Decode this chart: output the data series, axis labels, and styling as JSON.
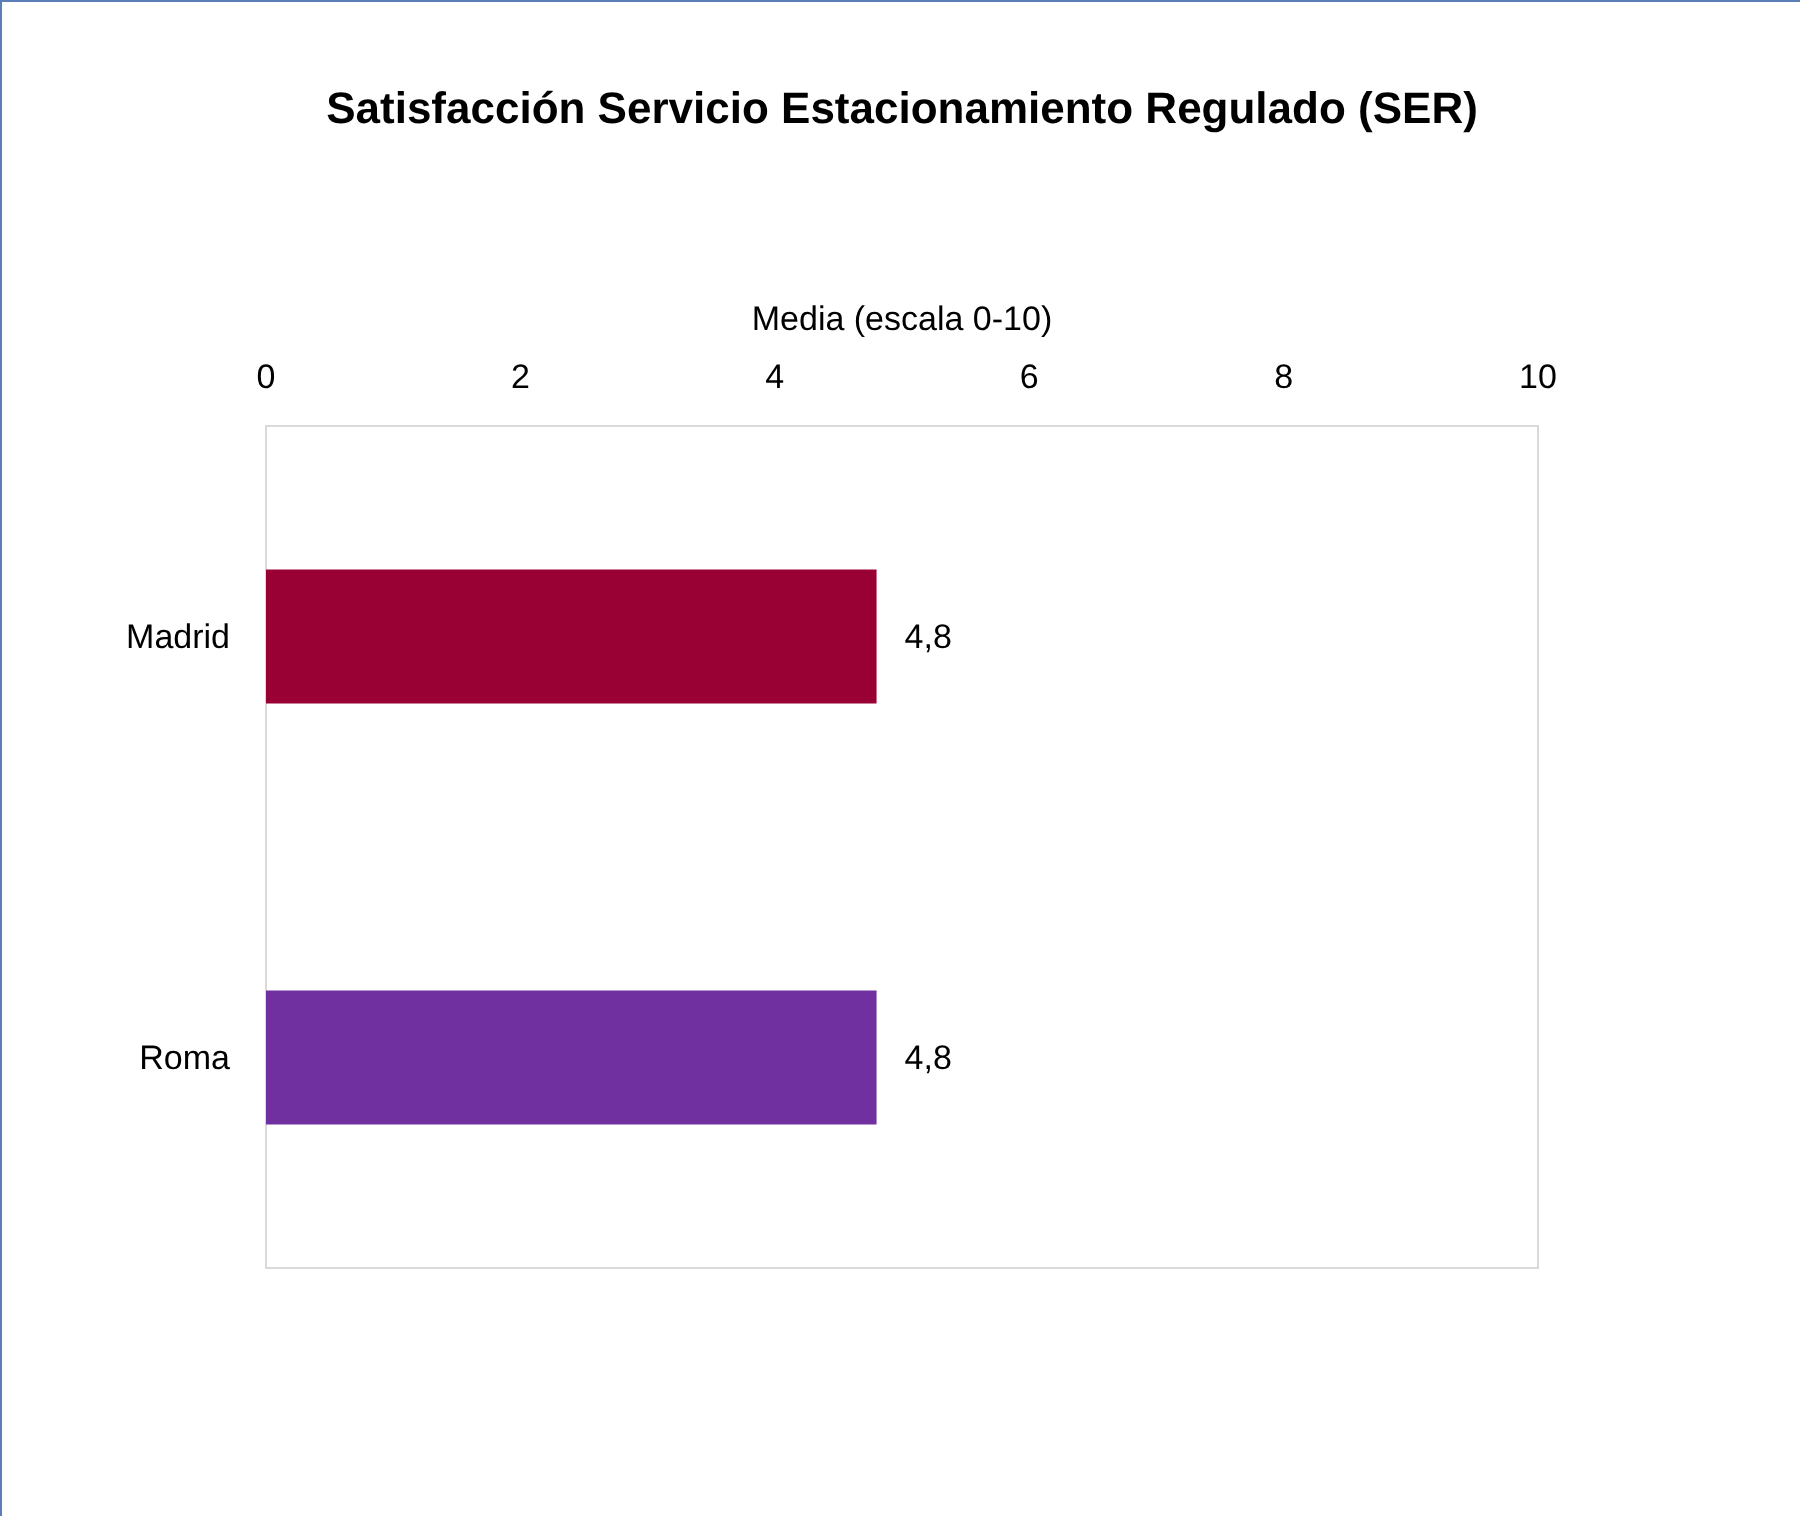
{
  "chart_data": {
    "type": "bar",
    "orientation": "horizontal",
    "title": "Satisfacción Servicio Estacionamiento Regulado (SER)",
    "xlabel": "Media (escala 0-10)",
    "categories": [
      "Madrid",
      "Roma"
    ],
    "values": [
      4.8,
      4.8
    ],
    "colors": [
      "#990033",
      "#7030a0"
    ],
    "value_labels": [
      "4,8",
      "4,8"
    ],
    "xlim": [
      0,
      10
    ],
    "xticks": [
      0,
      2,
      4,
      6,
      8,
      10
    ]
  }
}
